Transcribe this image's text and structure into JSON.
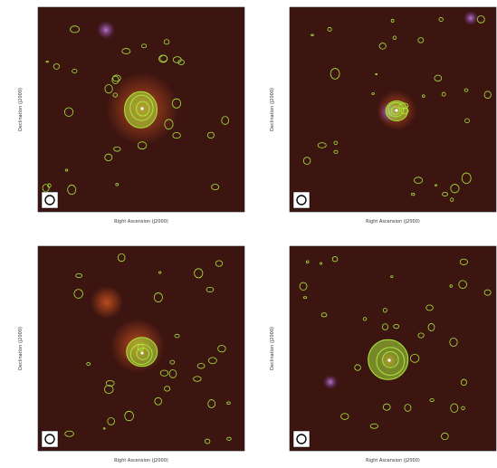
{
  "panels": [
    {
      "x_label": "Right Ascension (J2000)",
      "y_label": "Declination (J2000)"
    },
    {
      "x_label": "Right Ascension (J2000)",
      "y_label": "Declination (J2000)"
    },
    {
      "x_label": "Right Ascension (J2000)",
      "y_label": "Declination (J2000)"
    },
    {
      "x_label": "Right Ascension (J2000)",
      "y_label": "Declination (J2000)"
    }
  ]
}
